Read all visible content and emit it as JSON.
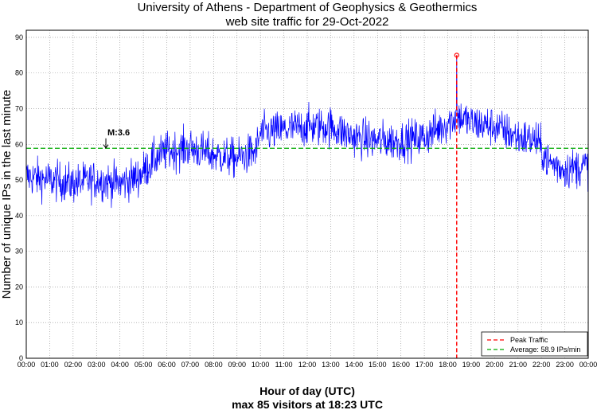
{
  "chart_data": {
    "type": "line",
    "title": [
      "University of Athens - Department of Geophysics & Geothermics",
      "web site traffic for 29-Oct-2022"
    ],
    "xlabel": "Hour of day (UTC)",
    "subtitle": "max 85 visitors at 18:23 UTC",
    "ylabel": "Number of unique IPs in the last minute",
    "xlim": [
      0,
      24
    ],
    "ylim": [
      0,
      92
    ],
    "x_ticks": [
      "00:00",
      "01:00",
      "02:00",
      "03:00",
      "04:00",
      "05:00",
      "06:00",
      "07:00",
      "08:00",
      "09:00",
      "10:00",
      "11:00",
      "12:00",
      "13:00",
      "14:00",
      "15:00",
      "16:00",
      "17:00",
      "18:00",
      "19:00",
      "20:00",
      "21:00",
      "22:00",
      "23:00",
      "00:00"
    ],
    "y_ticks": [
      0,
      10,
      20,
      30,
      40,
      50,
      60,
      70,
      80,
      90
    ],
    "grid": true,
    "average": 58.9,
    "peak": {
      "hour": 18.383,
      "value": 85
    },
    "annotation": {
      "label": "M:3.6",
      "hour": 3.4,
      "value": 59
    },
    "legend": [
      {
        "label": "Peak Traffic",
        "color": "#ff0000",
        "style": "dashed"
      },
      {
        "label": "Average: 58.9 IPs/min",
        "color": "#00aa00",
        "style": "dashed"
      }
    ],
    "legend_position": "bottom-right",
    "series_color": "#0000ff",
    "series_profile": {
      "hours": [
        0,
        1,
        2,
        3,
        4,
        4.8,
        5.5,
        6,
        7,
        8,
        9,
        9.8,
        10,
        11,
        12,
        13,
        14,
        15,
        16,
        17,
        18,
        18.4,
        19,
        20,
        21,
        21.8,
        22.3,
        23,
        24
      ],
      "values": [
        51,
        50,
        49,
        50,
        49,
        51,
        56,
        58,
        59,
        57,
        56,
        58,
        63,
        64,
        65,
        65,
        62,
        61,
        61,
        62,
        66,
        68,
        66,
        65,
        62,
        61,
        55,
        53,
        54
      ]
    }
  }
}
